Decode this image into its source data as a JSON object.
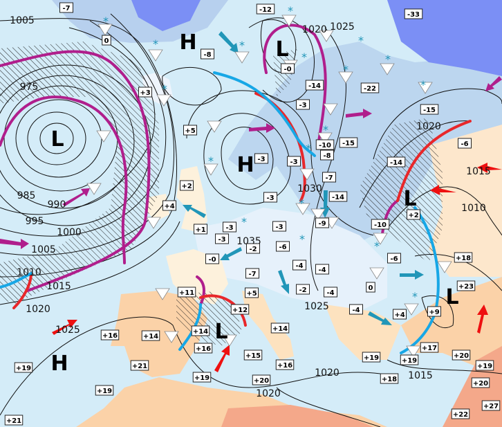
{
  "map": {
    "colors": {
      "sea": "#d4ecf8",
      "cold_land": "#c6dcf2",
      "very_cold": "#7b8ff5",
      "warm_land": "#fddcb4",
      "hot_land": "#f4a88a",
      "warm_front": "#e8272a",
      "cold_front": "#17a7e6",
      "occluded_front": "#b01e8c",
      "cold_arrow": "#2196b8",
      "warm_arrow": "#ee1010"
    },
    "pressure_centers": [
      {
        "type": "H"
      },
      {
        "type": "L"
      },
      {
        "type": "L"
      },
      {
        "type": "H"
      },
      {
        "type": "L"
      },
      {
        "type": "H"
      },
      {
        "type": "L"
      },
      {
        "type": "L"
      }
    ],
    "isobar_labels": [
      "1005",
      "975",
      "985",
      "990",
      "995",
      "1000",
      "1005",
      "1010",
      "1015",
      "1020",
      "1025",
      "1020",
      "1025",
      "1020",
      "1015",
      "1010",
      "1030",
      "1035",
      "1025",
      "1015",
      "1020",
      "1020"
    ],
    "temperature_labels": [
      "-7",
      "0",
      "-8",
      "+3",
      "+5",
      "+2",
      "+4",
      "+1",
      "-3",
      "-3",
      "-0",
      "-12",
      "-0",
      "-14",
      "-3",
      "-22",
      "-33",
      "-15",
      "-10",
      "-15",
      "-8",
      "-3",
      "-3",
      "-7",
      "-14",
      "-3",
      "-3",
      "-14",
      "-6",
      "-9",
      "-10",
      "+2",
      "-6",
      "-2",
      "-6",
      "-7",
      "-4",
      "-4",
      "+18",
      "-2",
      "-4",
      "0",
      "-4",
      "+4",
      "+23",
      "+9",
      "+5",
      "+11",
      "+12",
      "+14",
      "+14",
      "+16",
      "+16",
      "+14",
      "+21",
      "+19",
      "+19",
      "+19",
      "+15",
      "+16",
      "+19",
      "+17",
      "+19",
      "+20",
      "+19",
      "+18",
      "+20",
      "+20",
      "+27",
      "+22",
      "+21"
    ],
    "weather_symbols": [
      "snow-icon",
      "showers-icon"
    ]
  }
}
